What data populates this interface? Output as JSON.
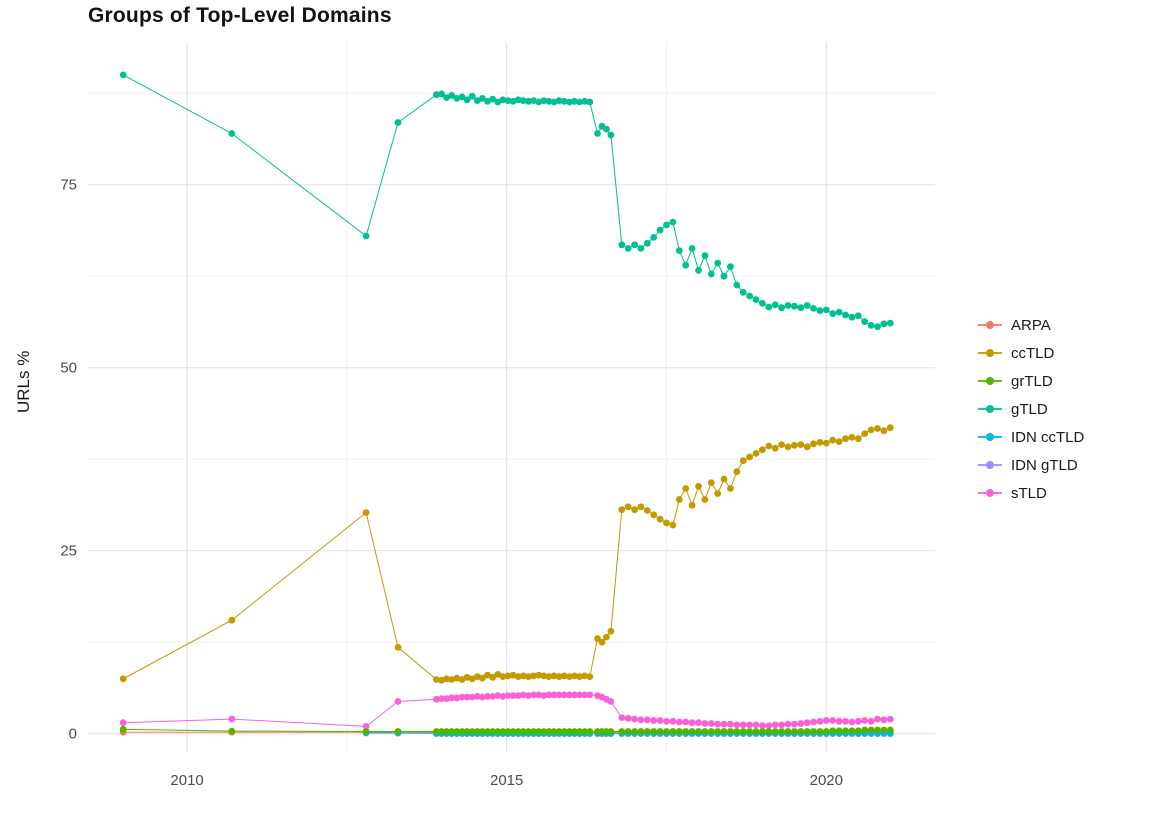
{
  "chart_data": {
    "type": "line",
    "title": "Groups of Top-Level Domains",
    "xlabel": "",
    "ylabel": "URLs %",
    "x_ticks": [
      2010,
      2015,
      2020
    ],
    "x_minor_ticks": [
      2012.5,
      2017.5
    ],
    "y_ticks": [
      0,
      25,
      50,
      75
    ],
    "y_minor_ticks": [
      12.5,
      37.5,
      62.5,
      87.5
    ],
    "xlim": [
      2008.45,
      2021.7
    ],
    "ylim": [
      -2.5,
      94.5
    ],
    "grid": true,
    "legend_position": "right",
    "x": [
      2009.0,
      2010.7,
      2012.8,
      2013.3,
      2013.9,
      2013.98,
      2014.06,
      2014.14,
      2014.22,
      2014.3,
      2014.38,
      2014.46,
      2014.54,
      2014.62,
      2014.7,
      2014.78,
      2014.86,
      2014.94,
      2015.02,
      2015.1,
      2015.18,
      2015.26,
      2015.34,
      2015.42,
      2015.5,
      2015.58,
      2015.66,
      2015.74,
      2015.82,
      2015.9,
      2015.98,
      2016.06,
      2016.14,
      2016.22,
      2016.3,
      2016.42,
      2016.49,
      2016.56,
      2016.63,
      2016.8,
      2016.9,
      2017.0,
      2017.1,
      2017.2,
      2017.3,
      2017.4,
      2017.5,
      2017.6,
      2017.7,
      2017.8,
      2017.9,
      2018.0,
      2018.1,
      2018.2,
      2018.3,
      2018.4,
      2018.5,
      2018.6,
      2018.7,
      2018.8,
      2018.9,
      2019.0,
      2019.1,
      2019.2,
      2019.3,
      2019.4,
      2019.5,
      2019.6,
      2019.7,
      2019.8,
      2019.9,
      2020.0,
      2020.1,
      2020.2,
      2020.3,
      2020.4,
      2020.5,
      2020.6,
      2020.7,
      2020.8,
      2020.9,
      2021.0
    ],
    "series": [
      {
        "name": "ARPA",
        "color": "#F8766D",
        "values": [
          0.2,
          0.2,
          0.2,
          0.2,
          0.15,
          0.15,
          0.15,
          0.15,
          0.15,
          0.15,
          0.15,
          0.15,
          0.15,
          0.15,
          0.15,
          0.15,
          0.15,
          0.15,
          0.15,
          0.15,
          0.15,
          0.15,
          0.15,
          0.15,
          0.15,
          0.15,
          0.15,
          0.15,
          0.15,
          0.15,
          0.15,
          0.15,
          0.15,
          0.15,
          0.15,
          0.15,
          0.15,
          0.15,
          0.15,
          0.15,
          0.15,
          0.15,
          0.15,
          0.15,
          0.15,
          0.15,
          0.15,
          0.15,
          0.15,
          0.15,
          0.15,
          0.15,
          0.15,
          0.15,
          0.15,
          0.15,
          0.15,
          0.15,
          0.15,
          0.15,
          0.15,
          0.15,
          0.15,
          0.15,
          0.15,
          0.15,
          0.15,
          0.15,
          0.15,
          0.15,
          0.15,
          0.15,
          0.15,
          0.15,
          0.15,
          0.15,
          0.15,
          0.15,
          0.15,
          0.15,
          0.15,
          0.15
        ]
      },
      {
        "name": "ccTLD",
        "color": "#C49A00",
        "values": [
          7.5,
          15.5,
          30.2,
          11.8,
          7.4,
          7.3,
          7.5,
          7.4,
          7.6,
          7.4,
          7.7,
          7.5,
          7.8,
          7.6,
          8.0,
          7.7,
          8.1,
          7.8,
          7.9,
          8.0,
          7.8,
          7.9,
          7.8,
          7.9,
          8.0,
          7.9,
          7.8,
          7.9,
          7.8,
          7.9,
          7.8,
          7.9,
          7.8,
          7.9,
          7.8,
          13.0,
          12.5,
          13.2,
          14.0,
          30.6,
          31.0,
          30.6,
          31.0,
          30.5,
          29.9,
          29.3,
          28.8,
          28.5,
          32.0,
          33.5,
          31.2,
          33.8,
          32.0,
          34.3,
          32.8,
          34.8,
          33.5,
          35.8,
          37.3,
          37.8,
          38.3,
          38.8,
          39.3,
          39.0,
          39.5,
          39.2,
          39.4,
          39.5,
          39.2,
          39.6,
          39.8,
          39.7,
          40.1,
          39.9,
          40.3,
          40.5,
          40.3,
          41.0,
          41.5,
          41.7,
          41.4,
          41.8
        ]
      },
      {
        "name": "grTLD",
        "color": "#53B400",
        "values": [
          0.6,
          0.35,
          0.3,
          0.3,
          0.3,
          0.3,
          0.3,
          0.3,
          0.3,
          0.3,
          0.3,
          0.3,
          0.3,
          0.3,
          0.3,
          0.3,
          0.3,
          0.3,
          0.3,
          0.3,
          0.3,
          0.3,
          0.3,
          0.3,
          0.3,
          0.3,
          0.3,
          0.3,
          0.3,
          0.3,
          0.3,
          0.3,
          0.3,
          0.3,
          0.3,
          0.3,
          0.3,
          0.3,
          0.3,
          0.3,
          0.3,
          0.3,
          0.3,
          0.3,
          0.3,
          0.3,
          0.3,
          0.3,
          0.3,
          0.3,
          0.3,
          0.3,
          0.3,
          0.3,
          0.3,
          0.3,
          0.3,
          0.3,
          0.3,
          0.3,
          0.3,
          0.3,
          0.3,
          0.3,
          0.3,
          0.3,
          0.3,
          0.3,
          0.3,
          0.3,
          0.3,
          0.3,
          0.4,
          0.4,
          0.4,
          0.4,
          0.4,
          0.5,
          0.5,
          0.5,
          0.5,
          0.5
        ]
      },
      {
        "name": "gTLD",
        "color": "#00C094",
        "values": [
          90,
          82,
          68,
          83.5,
          87.3,
          87.4,
          86.9,
          87.2,
          86.8,
          87.0,
          86.6,
          87.1,
          86.5,
          86.8,
          86.4,
          86.7,
          86.3,
          86.6,
          86.5,
          86.4,
          86.6,
          86.5,
          86.4,
          86.5,
          86.3,
          86.5,
          86.4,
          86.3,
          86.5,
          86.4,
          86.3,
          86.4,
          86.3,
          86.4,
          86.3,
          82.0,
          83.0,
          82.6,
          81.8,
          66.8,
          66.3,
          66.8,
          66.3,
          67.0,
          67.8,
          68.8,
          69.5,
          69.9,
          66.0,
          64.0,
          66.3,
          63.3,
          65.3,
          62.8,
          64.3,
          62.5,
          63.8,
          61.3,
          60.3,
          59.8,
          59.3,
          58.8,
          58.3,
          58.6,
          58.2,
          58.5,
          58.4,
          58.2,
          58.5,
          58.1,
          57.8,
          57.9,
          57.4,
          57.6,
          57.2,
          56.9,
          57.1,
          56.3,
          55.8,
          55.6,
          56.0,
          56.1
        ]
      },
      {
        "name": "IDN ccTLD",
        "color": "#00B6EB",
        "values": [
          null,
          null,
          0.1,
          0.08,
          0.05,
          0.05,
          0.05,
          0.05,
          0.05,
          0.05,
          0.05,
          0.05,
          0.05,
          0.05,
          0.05,
          0.05,
          0.05,
          0.05,
          0.05,
          0.05,
          0.05,
          0.05,
          0.05,
          0.05,
          0.05,
          0.05,
          0.05,
          0.05,
          0.05,
          0.05,
          0.05,
          0.05,
          0.05,
          0.05,
          0.05,
          0.05,
          0.05,
          0.05,
          0.05,
          0.05,
          0.05,
          0.05,
          0.05,
          0.05,
          0.05,
          0.05,
          0.05,
          0.05,
          0.05,
          0.05,
          0.05,
          0.05,
          0.05,
          0.05,
          0.05,
          0.05,
          0.05,
          0.05,
          0.05,
          0.05,
          0.05,
          0.05,
          0.05,
          0.05,
          0.05,
          0.05,
          0.05,
          0.05,
          0.05,
          0.05,
          0.05,
          0.05,
          0.05,
          0.05,
          0.05,
          0.05,
          0.05,
          0.05,
          0.05,
          0.05,
          0.05,
          0.05
        ]
      },
      {
        "name": "IDN gTLD",
        "color": "#A58AFF",
        "values": [
          null,
          null,
          null,
          null,
          0.02,
          0.02,
          0.02,
          0.02,
          0.02,
          0.02,
          0.02,
          0.02,
          0.02,
          0.02,
          0.02,
          0.02,
          0.02,
          0.02,
          0.02,
          0.02,
          0.02,
          0.02,
          0.02,
          0.02,
          0.02,
          0.02,
          0.02,
          0.02,
          0.02,
          0.02,
          0.02,
          0.02,
          0.02,
          0.02,
          0.02,
          0.02,
          0.02,
          0.02,
          0.02,
          0.02,
          0.02,
          0.02,
          0.02,
          0.02,
          0.02,
          0.02,
          0.02,
          0.02,
          0.02,
          0.02,
          0.02,
          0.02,
          0.02,
          0.02,
          0.02,
          0.02,
          0.02,
          0.02,
          0.02,
          0.02,
          0.02,
          0.02,
          0.02,
          0.02,
          0.02,
          0.02,
          0.02,
          0.02,
          0.02,
          0.02,
          0.02,
          0.02,
          0.02,
          0.02,
          0.02,
          0.02,
          0.02,
          0.02,
          0.02,
          0.02,
          0.02,
          0.02
        ]
      },
      {
        "name": "sTLD",
        "color": "#FB61D7",
        "values": [
          1.5,
          2.0,
          1.0,
          4.4,
          4.7,
          4.8,
          4.8,
          4.9,
          4.9,
          5.0,
          5.0,
          5.0,
          5.1,
          5.0,
          5.1,
          5.1,
          5.2,
          5.1,
          5.2,
          5.2,
          5.2,
          5.3,
          5.2,
          5.3,
          5.3,
          5.2,
          5.3,
          5.3,
          5.3,
          5.3,
          5.3,
          5.3,
          5.3,
          5.3,
          5.3,
          5.2,
          5.0,
          4.7,
          4.4,
          2.2,
          2.1,
          2.0,
          1.9,
          1.9,
          1.8,
          1.8,
          1.7,
          1.7,
          1.6,
          1.6,
          1.5,
          1.5,
          1.4,
          1.4,
          1.3,
          1.3,
          1.3,
          1.2,
          1.2,
          1.2,
          1.2,
          1.1,
          1.1,
          1.2,
          1.2,
          1.3,
          1.3,
          1.4,
          1.5,
          1.6,
          1.7,
          1.8,
          1.8,
          1.7,
          1.7,
          1.6,
          1.7,
          1.8,
          1.7,
          2.0,
          1.9,
          2.0
        ]
      }
    ]
  }
}
